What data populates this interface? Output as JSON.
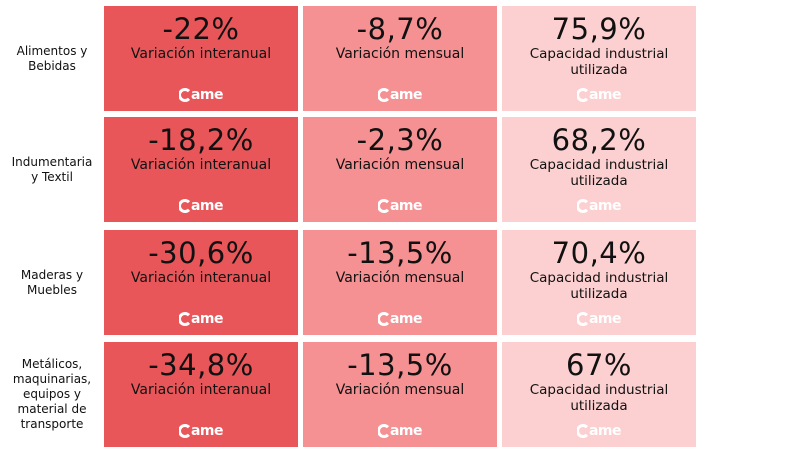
{
  "colors": {
    "interanual_bg": "#e8565a",
    "mensual_bg": "#f69193",
    "capacidad_bg": "#fcd0d1",
    "logo_fill": "#ffffff"
  },
  "logo": {
    "text": "ame",
    "icon": "came-logo-icon"
  },
  "rows": [
    {
      "label": "Alimentos y\nBebidas",
      "interanual": {
        "value": "-22%",
        "label": "Variación interanual"
      },
      "mensual": {
        "value": "-8,7%",
        "label": "Variación mensual"
      },
      "capacidad": {
        "value": "75,9%",
        "label": "Capacidad industrial\nutilizada"
      }
    },
    {
      "label": "Indumentaria\ny Textil",
      "interanual": {
        "value": "-18,2%",
        "label": "Variación interanual"
      },
      "mensual": {
        "value": "-2,3%",
        "label": "Variación mensual"
      },
      "capacidad": {
        "value": "68,2%",
        "label": "Capacidad industrial\nutilizada"
      }
    },
    {
      "label": "Maderas y\nMuebles",
      "interanual": {
        "value": "-30,6%",
        "label": "Variación interanual"
      },
      "mensual": {
        "value": "-13,5%",
        "label": "Variación mensual"
      },
      "capacidad": {
        "value": "70,4%",
        "label": "Capacidad industrial\nutilizada"
      }
    },
    {
      "label": "Metálicos,\nmaquinarias,\nequipos y\nmaterial de\ntransporte",
      "interanual": {
        "value": "-34,8%",
        "label": "Variación interanual"
      },
      "mensual": {
        "value": "-13,5%",
        "label": "Variación mensual"
      },
      "capacidad": {
        "value": "67%",
        "label": "Capacidad industrial\nutilizada"
      }
    }
  ]
}
